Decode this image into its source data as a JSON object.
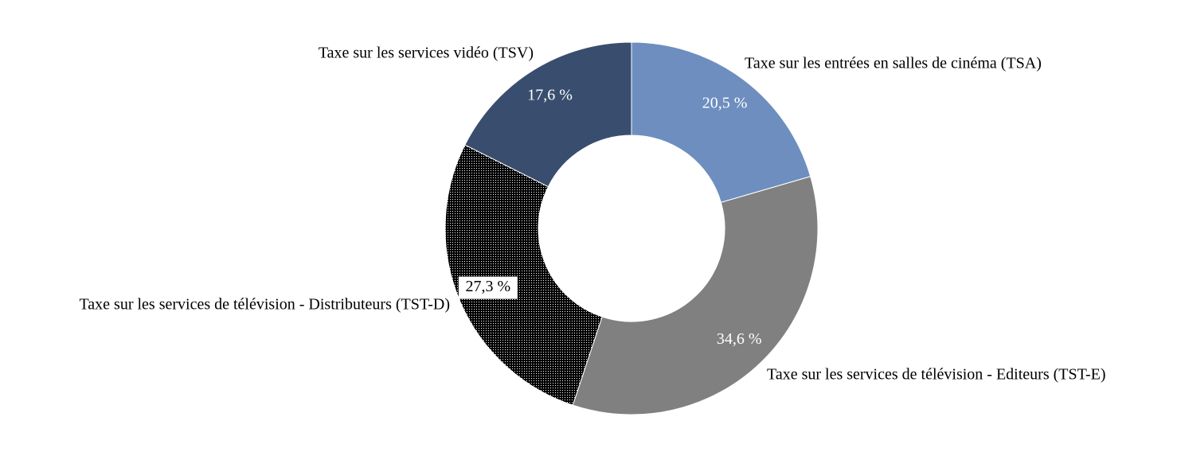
{
  "chart_data": {
    "type": "donut",
    "categories": [
      "Taxe sur les entrées en salles de cinéma (TSA)",
      "Taxe sur les services de télévision - Editeurs (TST-E)",
      "Taxe sur les services de télévision - Distributeurs (TST-D)",
      "Taxe sur les services vidéo (TSV)"
    ],
    "values": [
      20.5,
      34.6,
      27.3,
      17.6
    ],
    "value_labels": [
      "20,5 %",
      "34,6 %",
      "27,3 %",
      "17,6 %"
    ],
    "colors": [
      "#6d8ebf",
      "#808080",
      "#1e1e1e",
      "#394e6e"
    ]
  }
}
